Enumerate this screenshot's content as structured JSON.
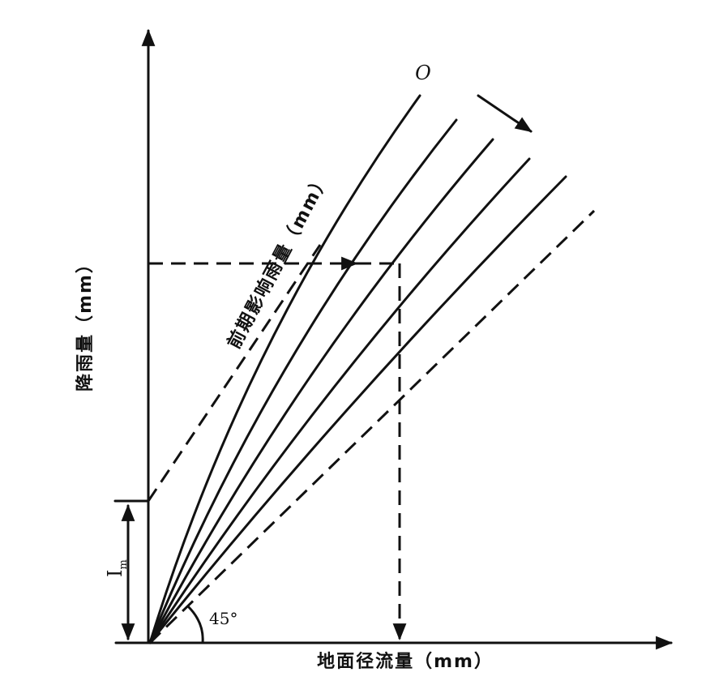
{
  "curve_label": "O",
  "antecedent_label": "前期影响雨量（mm）",
  "y_axis_label": "降雨量（mm）",
  "x_axis_label": "地面径流量（mm）",
  "im_label": {
    "text": "I",
    "subscript": "m"
  },
  "angle_label": "45°"
}
